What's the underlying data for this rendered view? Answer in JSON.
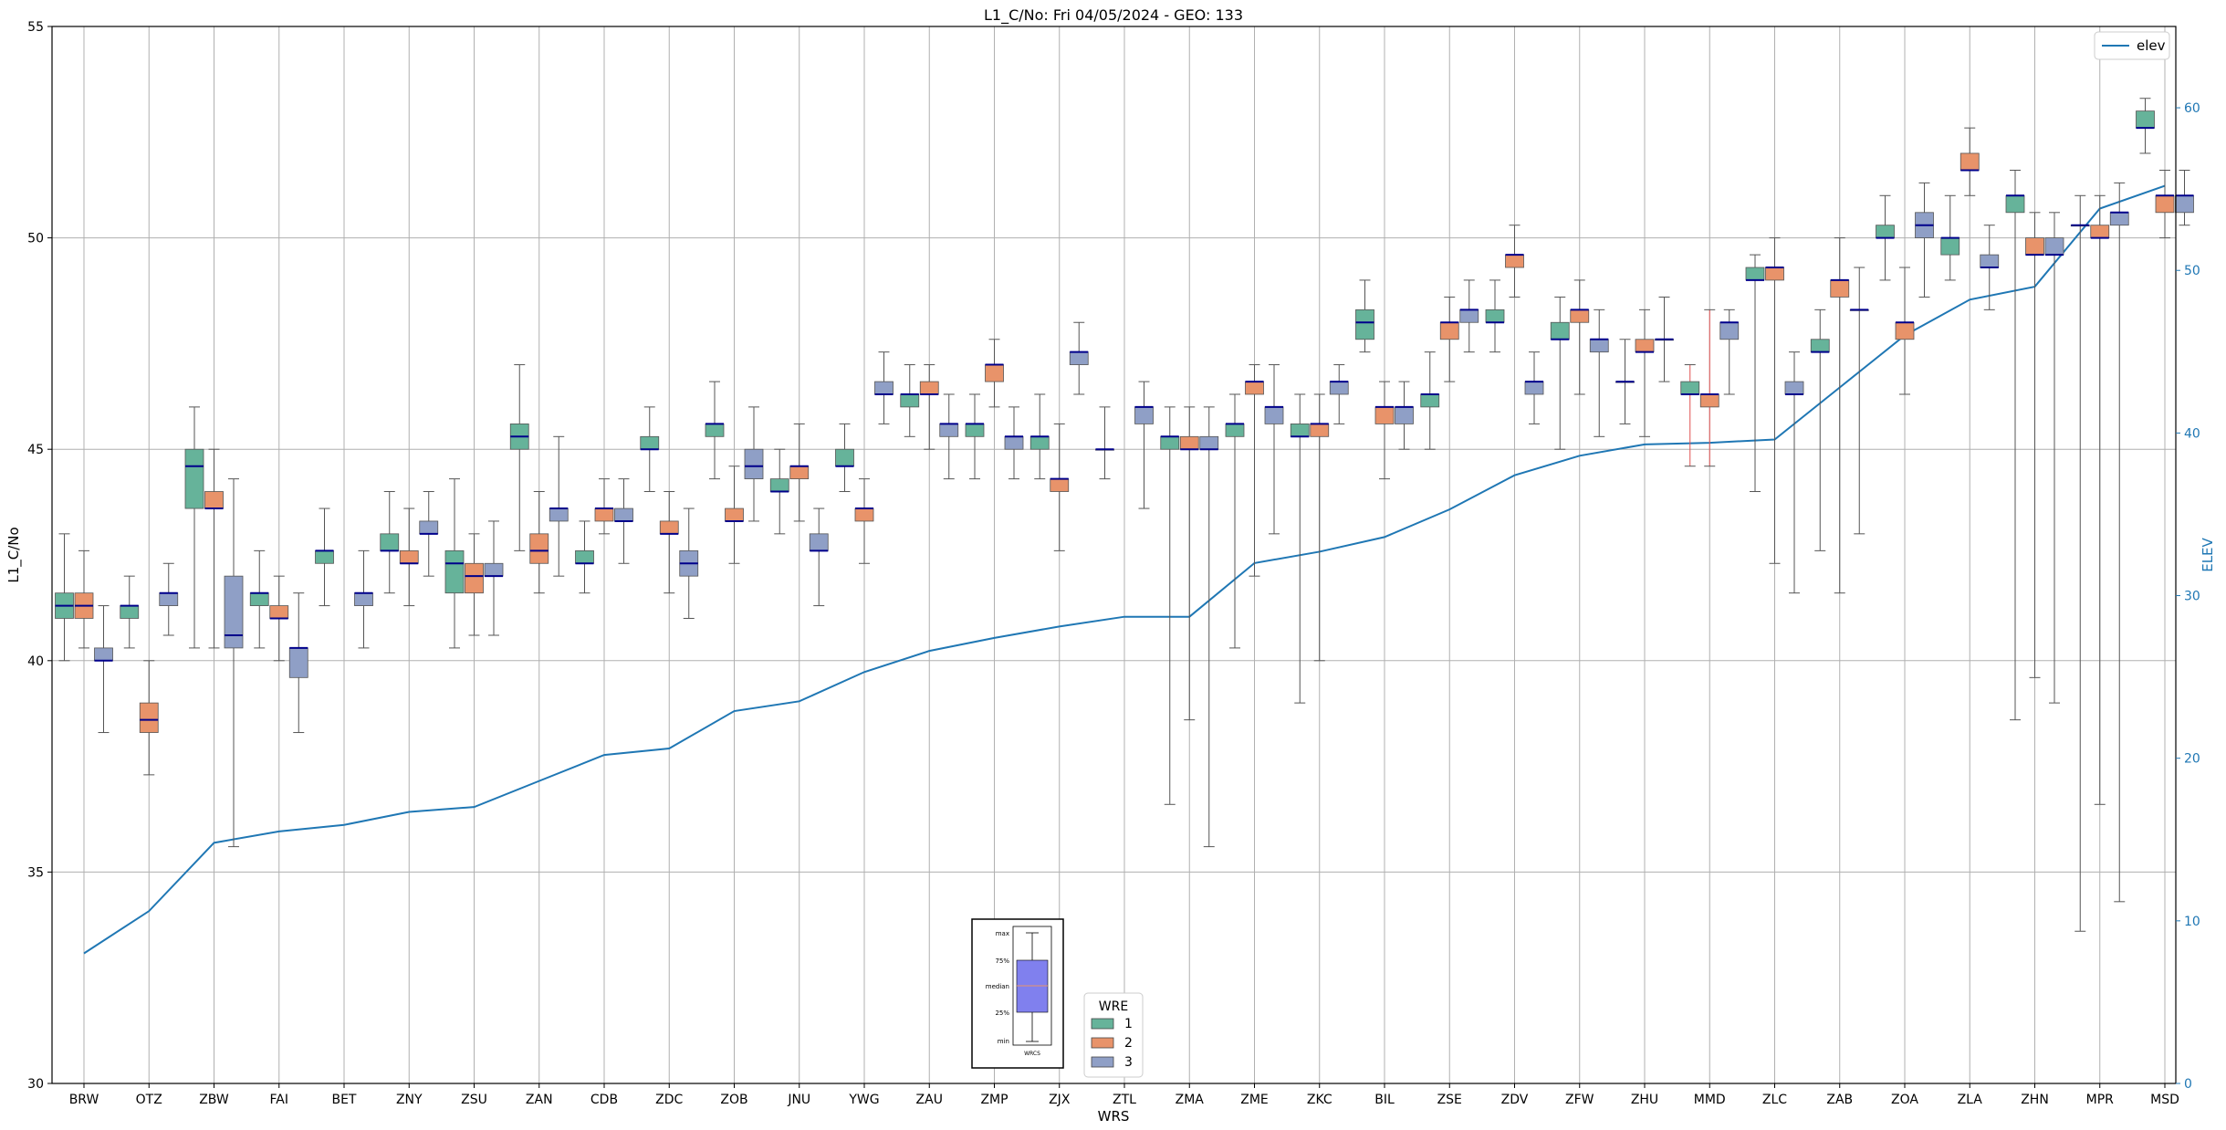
{
  "chart_data": {
    "type": "box",
    "title": "L1_C/No: Fri 04/05/2024 - GEO: 133",
    "xlabel": "WRS",
    "ylabel": "L1_C/No",
    "y2label": "ELEV",
    "ylim": [
      30,
      55
    ],
    "y2lim": [
      0,
      65
    ],
    "yticks": [
      30,
      35,
      40,
      45,
      50,
      55
    ],
    "y2ticks": [
      0,
      10,
      20,
      30,
      40,
      50,
      60
    ],
    "grid": true,
    "categories": [
      "BRW",
      "OTZ",
      "ZBW",
      "FAI",
      "BET",
      "ZNY",
      "ZSU",
      "ZAN",
      "CDB",
      "ZDC",
      "ZOB",
      "JNU",
      "YWG",
      "ZAU",
      "ZMP",
      "ZJX",
      "ZTL",
      "ZMA",
      "ZME",
      "ZKC",
      "BIL",
      "ZSE",
      "ZDV",
      "ZFW",
      "ZHU",
      "MMD",
      "ZLC",
      "ZAB",
      "ZOA",
      "ZLA",
      "ZHN",
      "MPR",
      "MSD"
    ],
    "wre_colors": {
      "1": "#66b39a",
      "2": "#e8936a",
      "3": "#8f9fc6"
    },
    "elev_color": "#1f77b4",
    "elev_line": {
      "name": "elev",
      "values": [
        8.0,
        10.6,
        14.8,
        15.5,
        15.9,
        16.7,
        17.0,
        18.6,
        20.2,
        20.6,
        22.9,
        23.5,
        25.3,
        26.6,
        27.4,
        28.1,
        28.7,
        28.7,
        32.0,
        32.7,
        33.6,
        35.3,
        37.4,
        38.6,
        39.3,
        39.4,
        39.6,
        42.8,
        46.0,
        48.2,
        49.0,
        53.8,
        55.2
      ]
    },
    "series": [
      {
        "name": "1",
        "values": [
          [
            40.0,
            41.0,
            41.3,
            41.6,
            43.0
          ],
          [
            40.3,
            41.0,
            41.3,
            41.3,
            42.0
          ],
          [
            40.3,
            43.6,
            44.6,
            45.0,
            46.0
          ],
          [
            40.3,
            41.3,
            41.6,
            41.6,
            42.6
          ],
          [
            41.3,
            42.3,
            42.6,
            42.6,
            43.6
          ],
          [
            41.6,
            42.6,
            42.6,
            43.0,
            44.0
          ],
          [
            40.3,
            41.6,
            42.3,
            42.6,
            44.3
          ],
          [
            42.6,
            45.0,
            45.3,
            45.6,
            47.0
          ],
          [
            41.6,
            42.3,
            42.3,
            42.6,
            43.3
          ],
          [
            44.0,
            45.0,
            45.0,
            45.3,
            46.0
          ],
          [
            44.3,
            45.3,
            45.6,
            45.6,
            46.6
          ],
          [
            43.0,
            44.0,
            44.0,
            44.3,
            45.0
          ],
          [
            44.0,
            44.6,
            44.6,
            45.0,
            45.6
          ],
          [
            45.3,
            46.0,
            46.3,
            46.3,
            47.0
          ],
          [
            44.3,
            45.3,
            45.6,
            45.6,
            46.3
          ],
          [
            44.3,
            45.0,
            45.3,
            45.3,
            46.3
          ],
          [
            44.3,
            45.0,
            45.0,
            45.0,
            46.0
          ],
          [
            36.6,
            45.0,
            45.3,
            45.3,
            46.0
          ],
          [
            40.3,
            45.3,
            45.6,
            45.6,
            46.3
          ],
          [
            39.0,
            45.3,
            45.3,
            45.6,
            46.3
          ],
          [
            47.3,
            47.6,
            48.0,
            48.3,
            49.0
          ],
          [
            45.0,
            46.0,
            46.3,
            46.3,
            47.3
          ],
          [
            47.3,
            48.0,
            48.0,
            48.3,
            49.0
          ],
          [
            45.0,
            47.6,
            47.6,
            48.0,
            48.6
          ],
          [
            45.6,
            46.6,
            46.6,
            46.6,
            47.6
          ],
          [
            44.6,
            46.3,
            46.3,
            46.6,
            47.0
          ],
          [
            44.0,
            49.0,
            49.0,
            49.3,
            49.6
          ],
          [
            42.6,
            47.3,
            47.3,
            47.6,
            48.3
          ],
          [
            49.0,
            50.0,
            50.0,
            50.3,
            51.0
          ],
          [
            49.0,
            49.6,
            50.0,
            50.0,
            51.0
          ],
          [
            38.6,
            50.6,
            51.0,
            51.0,
            51.6
          ],
          [
            33.6,
            50.3,
            50.3,
            50.3,
            51.0
          ],
          [
            52.0,
            52.6,
            52.6,
            53.0,
            53.3
          ]
        ]
      },
      {
        "name": "2",
        "values": [
          [
            40.3,
            41.0,
            41.3,
            41.6,
            42.6
          ],
          [
            37.3,
            38.3,
            38.6,
            39.0,
            40.0
          ],
          [
            40.3,
            43.6,
            43.6,
            44.0,
            45.0
          ],
          [
            40.0,
            41.0,
            41.0,
            41.3,
            42.0
          ],
          null,
          [
            41.3,
            42.3,
            42.3,
            42.6,
            43.6
          ],
          [
            40.6,
            41.6,
            42.0,
            42.3,
            43.0
          ],
          [
            41.6,
            42.3,
            42.6,
            43.0,
            44.0
          ],
          [
            43.0,
            43.3,
            43.6,
            43.6,
            44.3
          ],
          [
            41.6,
            43.0,
            43.0,
            43.3,
            44.0
          ],
          [
            42.3,
            43.3,
            43.3,
            43.6,
            44.6
          ],
          [
            43.3,
            44.3,
            44.6,
            44.6,
            45.6
          ],
          [
            42.3,
            43.3,
            43.6,
            43.6,
            44.3
          ],
          [
            45.0,
            46.3,
            46.3,
            46.6,
            47.0
          ],
          [
            46.0,
            46.6,
            47.0,
            47.0,
            47.6
          ],
          [
            42.6,
            44.0,
            44.3,
            44.3,
            45.6
          ],
          null,
          [
            38.6,
            45.0,
            45.0,
            45.3,
            46.0
          ],
          [
            42.0,
            46.3,
            46.6,
            46.6,
            47.0
          ],
          [
            40.0,
            45.3,
            45.6,
            45.6,
            46.3
          ],
          [
            44.3,
            45.6,
            46.0,
            46.0,
            46.6
          ],
          [
            46.6,
            47.6,
            48.0,
            48.0,
            48.6
          ],
          [
            48.6,
            49.3,
            49.6,
            49.6,
            50.3
          ],
          [
            46.3,
            48.0,
            48.3,
            48.3,
            49.0
          ],
          [
            45.3,
            47.3,
            47.3,
            47.6,
            48.3
          ],
          [
            44.6,
            46.0,
            46.3,
            46.3,
            48.3
          ],
          [
            42.3,
            49.0,
            49.3,
            49.3,
            50.0
          ],
          [
            41.6,
            48.6,
            49.0,
            49.0,
            50.0
          ],
          [
            46.3,
            47.6,
            48.0,
            48.0,
            49.3
          ],
          [
            51.0,
            51.6,
            51.6,
            52.0,
            52.6
          ],
          [
            39.6,
            49.6,
            49.6,
            50.0,
            50.6
          ],
          [
            36.6,
            50.0,
            50.0,
            50.3,
            51.0
          ],
          [
            50.0,
            50.6,
            51.0,
            51.0,
            51.6
          ]
        ]
      },
      {
        "name": "3",
        "values": [
          [
            38.3,
            40.0,
            40.0,
            40.3,
            41.3
          ],
          [
            40.6,
            41.3,
            41.6,
            41.6,
            42.3
          ],
          [
            35.6,
            40.3,
            40.6,
            42.0,
            44.3
          ],
          [
            38.3,
            39.6,
            40.3,
            40.3,
            41.6
          ],
          [
            40.3,
            41.3,
            41.6,
            41.6,
            42.6
          ],
          [
            42.0,
            43.0,
            43.0,
            43.3,
            44.0
          ],
          [
            40.6,
            42.0,
            42.0,
            42.3,
            43.3
          ],
          [
            42.0,
            43.3,
            43.6,
            43.6,
            45.3
          ],
          [
            42.3,
            43.3,
            43.3,
            43.6,
            44.3
          ],
          [
            41.0,
            42.0,
            42.3,
            42.6,
            43.6
          ],
          [
            43.3,
            44.3,
            44.6,
            45.0,
            46.0
          ],
          [
            41.3,
            42.6,
            42.6,
            43.0,
            43.6
          ],
          [
            45.6,
            46.3,
            46.3,
            46.6,
            47.3
          ],
          [
            44.3,
            45.3,
            45.6,
            45.6,
            46.3
          ],
          [
            44.3,
            45.0,
            45.3,
            45.3,
            46.0
          ],
          [
            46.3,
            47.0,
            47.3,
            47.3,
            48.0
          ],
          [
            43.6,
            45.6,
            46.0,
            46.0,
            46.6
          ],
          [
            35.6,
            45.0,
            45.0,
            45.3,
            46.0
          ],
          [
            43.0,
            45.6,
            46.0,
            46.0,
            47.0
          ],
          [
            45.6,
            46.3,
            46.6,
            46.6,
            47.0
          ],
          [
            45.0,
            45.6,
            46.0,
            46.0,
            46.6
          ],
          [
            47.3,
            48.0,
            48.3,
            48.3,
            49.0
          ],
          [
            45.6,
            46.3,
            46.6,
            46.6,
            47.3
          ],
          [
            45.3,
            47.3,
            47.6,
            47.6,
            48.3
          ],
          [
            46.6,
            47.6,
            47.6,
            47.6,
            48.6
          ],
          [
            46.3,
            47.6,
            48.0,
            48.0,
            48.3
          ],
          [
            41.6,
            46.3,
            46.3,
            46.6,
            47.3
          ],
          [
            43.0,
            48.3,
            48.3,
            48.3,
            49.3
          ],
          [
            48.6,
            50.0,
            50.3,
            50.6,
            51.3
          ],
          [
            48.3,
            49.3,
            49.3,
            49.6,
            50.3
          ],
          [
            39.0,
            49.6,
            49.6,
            50.0,
            50.6
          ],
          [
            34.3,
            50.3,
            50.6,
            50.6,
            51.3
          ],
          [
            50.3,
            50.6,
            51.0,
            51.0,
            51.6
          ]
        ]
      }
    ],
    "legend_elev": {
      "label": "elev",
      "position": "upper-right"
    },
    "legend_wre": {
      "title": "WRE",
      "items": [
        "1",
        "2",
        "3"
      ],
      "position": "bottom-center"
    },
    "inset_key": {
      "labels": [
        "max",
        "75%",
        "median",
        "25%",
        "min"
      ],
      "xlabel": "WRCS"
    }
  }
}
